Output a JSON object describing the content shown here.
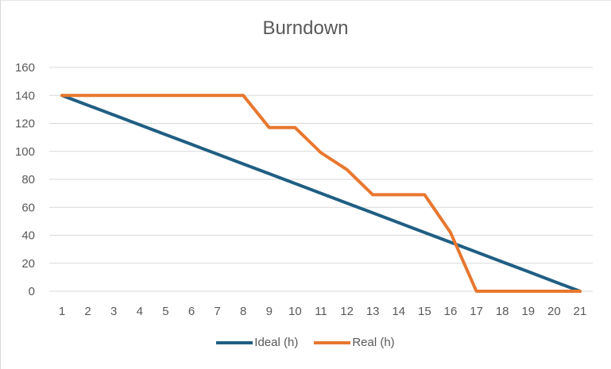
{
  "chart_data": {
    "type": "line",
    "title": "Burndown",
    "xlabel": "",
    "ylabel": "",
    "x": [
      1,
      2,
      3,
      4,
      5,
      6,
      7,
      8,
      9,
      10,
      11,
      12,
      13,
      14,
      15,
      16,
      17,
      18,
      19,
      20,
      21
    ],
    "ylim": [
      0,
      160
    ],
    "yticks": [
      0,
      20,
      40,
      60,
      80,
      100,
      120,
      140,
      160
    ],
    "grid": true,
    "legend_position": "bottom",
    "series": [
      {
        "name": "Ideal (h)",
        "color": "#1f5f82",
        "values": [
          140,
          133,
          126,
          119,
          112,
          105,
          98,
          91,
          84,
          77,
          70,
          63,
          56,
          49,
          42,
          35,
          28,
          21,
          14,
          7,
          0
        ]
      },
      {
        "name": "Real (h)",
        "color": "#e8772e",
        "values": [
          140,
          140,
          140,
          140,
          140,
          140,
          140,
          140,
          117,
          117,
          99,
          87,
          69,
          69,
          69,
          42,
          0,
          0,
          0,
          0,
          0
        ]
      }
    ]
  }
}
